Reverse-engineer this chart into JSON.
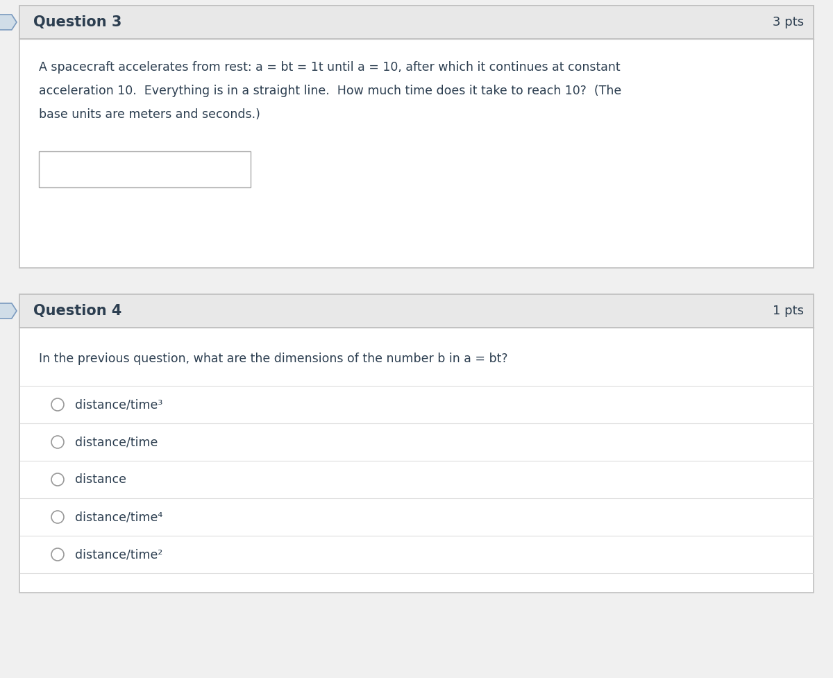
{
  "bg_color": "#f0f0f0",
  "white": "#ffffff",
  "border_color": "#c0c0c0",
  "text_color": "#2c3e50",
  "header_bg": "#e8e8e8",
  "divider_color": "#dddddd",
  "q3_title": "Question 3",
  "q3_pts": "3 pts",
  "q3_body_lines": [
    "A spacecraft accelerates from rest: a = bt = 1t until a = 10, after which it continues at constant",
    "acceleration 10.  Everything is in a straight line.  How much time does it take to reach 10?  (The",
    "base units are meters and seconds.)"
  ],
  "q4_title": "Question 4",
  "q4_pts": "1 pts",
  "q4_body": "In the previous question, what are the dimensions of the number b in a = bt?",
  "q4_options": [
    "distance/time³",
    "distance/time",
    "distance",
    "distance/time⁴",
    "distance/time²"
  ],
  "bullet_fill": "#d0dde8",
  "bullet_edge": "#7a9abf",
  "fig_width": 12.0,
  "fig_height": 9.77,
  "dpi": 100
}
